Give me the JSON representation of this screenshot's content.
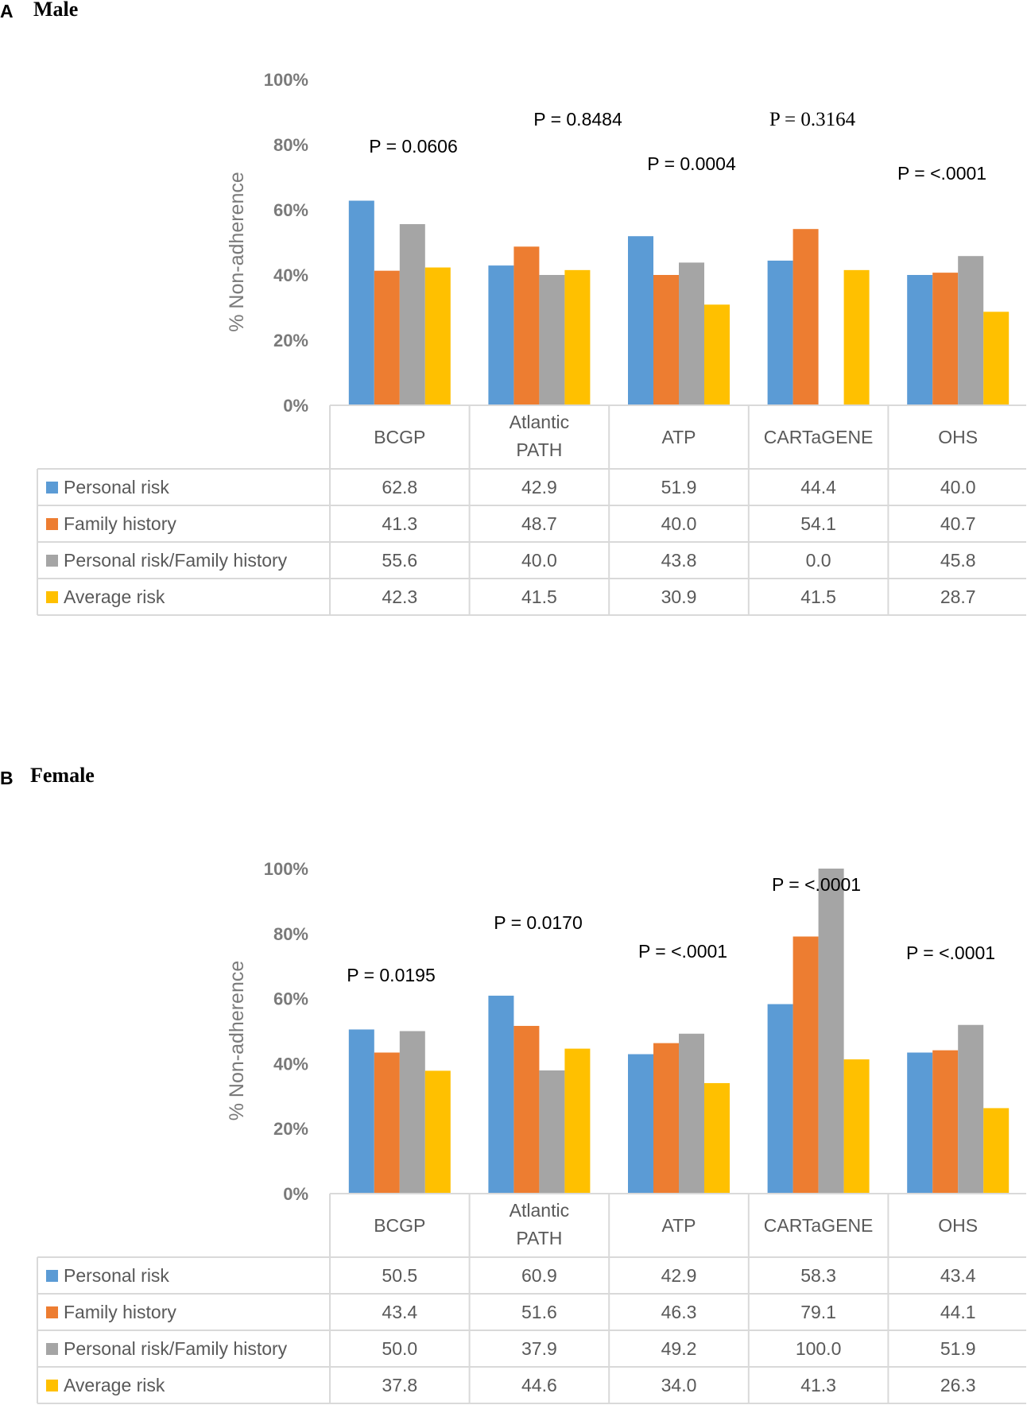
{
  "chart_data": [
    {
      "type": "bar",
      "panel": "A",
      "title": "Male",
      "ylabel": "% Non-adherence",
      "ylim": [
        0,
        100
      ],
      "yticks": [
        "0%",
        "20%",
        "40%",
        "60%",
        "80%",
        "100%"
      ],
      "categories": [
        {
          "line1": "BCGP",
          "line2": ""
        },
        {
          "line1": "Atlantic",
          "line2": "PATH"
        },
        {
          "line1": "ATP",
          "line2": ""
        },
        {
          "line1": "CARTaGENE",
          "line2": ""
        },
        {
          "line1": "OHS",
          "line2": ""
        }
      ],
      "pvalues": [
        "P = 0.0606",
        "P = 0.8484",
        "P = 0.0004",
        "P = 0.3164",
        "P = <.0001"
      ],
      "series": [
        {
          "name": "Personal risk",
          "color": "#5b9bd5",
          "values": [
            62.8,
            42.9,
            51.9,
            44.4,
            40.0
          ],
          "labels": [
            "62.8",
            "42.9",
            "51.9",
            "44.4",
            "40.0"
          ]
        },
        {
          "name": "Family history",
          "color": "#ed7d31",
          "values": [
            41.3,
            48.7,
            40.0,
            54.1,
            40.7
          ],
          "labels": [
            "41.3",
            "48.7",
            "40.0",
            "54.1",
            "40.7"
          ]
        },
        {
          "name": "Personal risk/Family history",
          "color": "#a5a5a5",
          "values": [
            55.6,
            40.0,
            43.8,
            0.0,
            45.8
          ],
          "labels": [
            "55.6",
            "40.0",
            "43.8",
            "0.0",
            "45.8"
          ]
        },
        {
          "name": "Average risk",
          "color": "#ffc000",
          "values": [
            42.3,
            41.5,
            30.9,
            41.5,
            28.7
          ],
          "labels": [
            "42.3",
            "41.5",
            "30.9",
            "41.5",
            "28.7"
          ]
        }
      ]
    },
    {
      "type": "bar",
      "panel": "B",
      "title": "Female",
      "ylabel": "% Non-adherence",
      "ylim": [
        0,
        100
      ],
      "yticks": [
        "0%",
        "20%",
        "40%",
        "60%",
        "80%",
        "100%"
      ],
      "categories": [
        {
          "line1": "BCGP",
          "line2": ""
        },
        {
          "line1": "Atlantic",
          "line2": "PATH"
        },
        {
          "line1": "ATP",
          "line2": ""
        },
        {
          "line1": "CARTaGENE",
          "line2": ""
        },
        {
          "line1": "OHS",
          "line2": ""
        }
      ],
      "pvalues": [
        "P = 0.0195",
        "P = 0.0170",
        "P = <.0001",
        "P = <.0001",
        "P = <.0001"
      ],
      "series": [
        {
          "name": "Personal risk",
          "color": "#5b9bd5",
          "values": [
            50.5,
            60.9,
            42.9,
            58.3,
            43.4
          ],
          "labels": [
            "50.5",
            "60.9",
            "42.9",
            "58.3",
            "43.4"
          ]
        },
        {
          "name": "Family history",
          "color": "#ed7d31",
          "values": [
            43.4,
            51.6,
            46.3,
            79.1,
            44.1
          ],
          "labels": [
            "43.4",
            "51.6",
            "46.3",
            "79.1",
            "44.1"
          ]
        },
        {
          "name": "Personal risk/Family history",
          "color": "#a5a5a5",
          "values": [
            50.0,
            37.9,
            49.2,
            100.0,
            51.9
          ],
          "labels": [
            "50.0",
            "37.9",
            "49.2",
            "100.0",
            "51.9"
          ]
        },
        {
          "name": "Average risk",
          "color": "#ffc000",
          "values": [
            37.8,
            44.6,
            34.0,
            41.3,
            26.3
          ],
          "labels": [
            "37.8",
            "44.6",
            "34.0",
            "41.3",
            "26.3"
          ]
        }
      ]
    }
  ]
}
